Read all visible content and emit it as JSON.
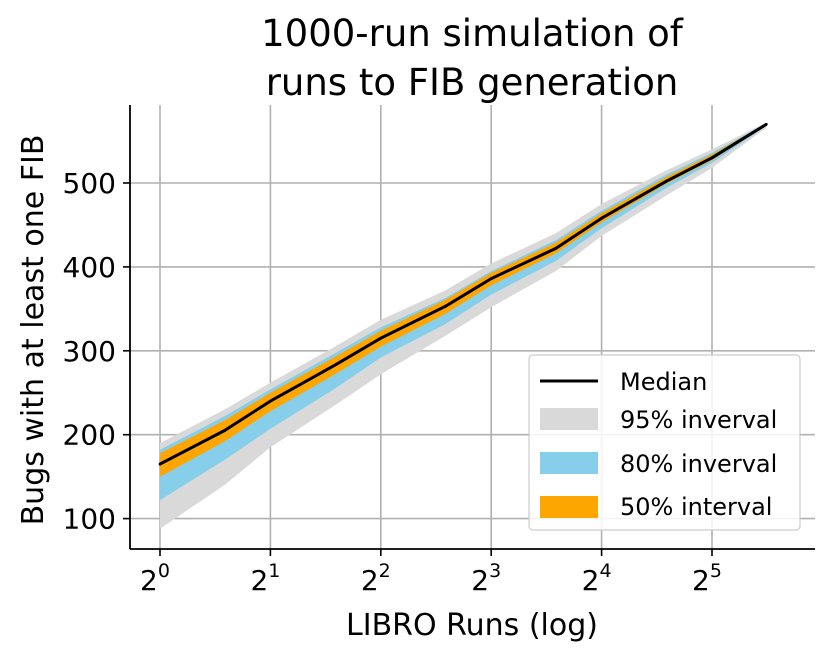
{
  "chart_data": {
    "type": "line",
    "title_lines": [
      "1000-run simulation of",
      "runs to FIB generation"
    ],
    "xlabel": "LIBRO Runs (log)",
    "ylabel": "Bugs with at least one FIB",
    "x_scale": "log2",
    "x_tick_base": "2",
    "x_tick_exponents": [
      "0",
      "1",
      "2",
      "3",
      "4",
      "5"
    ],
    "xlim": [
      1,
      50
    ],
    "y_ticks": [
      "100",
      "200",
      "300",
      "400",
      "500"
    ],
    "ylim": [
      62,
      590
    ],
    "grid": true,
    "legend_position": "lower right",
    "x": [
      1,
      1.5,
      2,
      3,
      4,
      6,
      8,
      12,
      16,
      24,
      32,
      45
    ],
    "series": [
      {
        "name": "Median",
        "kind": "line",
        "color": "#000000",
        "values": [
          165,
          205,
          240,
          283,
          315,
          353,
          386,
          422,
          458,
          502,
          530,
          570
        ]
      },
      {
        "name": "95% inverval",
        "kind": "band",
        "color": "#d9d9d9",
        "lower": [
          88,
          140,
          185,
          235,
          272,
          318,
          352,
          395,
          437,
          485,
          518,
          566
        ],
        "upper": [
          190,
          230,
          262,
          305,
          337,
          372,
          404,
          440,
          475,
          515,
          540,
          572
        ]
      },
      {
        "name": "80% inverval",
        "kind": "band",
        "color": "#87ceeb",
        "lower": [
          122,
          170,
          207,
          255,
          292,
          332,
          367,
          407,
          446,
          494,
          524,
          568
        ],
        "upper": [
          182,
          222,
          254,
          297,
          328,
          363,
          395,
          432,
          467,
          510,
          536,
          571
        ]
      },
      {
        "name": "50% interval",
        "kind": "band",
        "color": "#ffa500",
        "lower": [
          150,
          192,
          228,
          272,
          305,
          344,
          378,
          416,
          453,
          499,
          527,
          569
        ],
        "upper": [
          178,
          217,
          250,
          293,
          324,
          361,
          393,
          429,
          464,
          507,
          534,
          571
        ]
      }
    ]
  }
}
